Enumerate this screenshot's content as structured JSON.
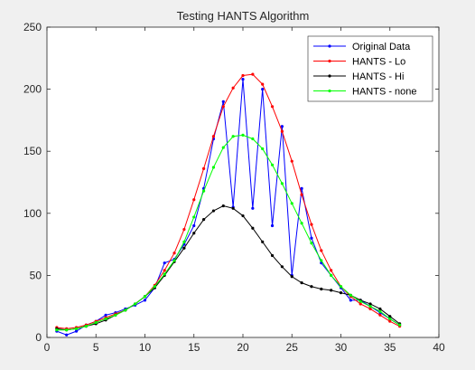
{
  "chart_data": {
    "type": "line",
    "title": "Testing HANTS Algorithm",
    "xlabel": "",
    "ylabel": "",
    "xlim": [
      0,
      40
    ],
    "ylim": [
      0,
      250
    ],
    "xticks": [
      0,
      5,
      10,
      15,
      20,
      25,
      30,
      35,
      40
    ],
    "yticks": [
      0,
      50,
      100,
      150,
      200,
      250
    ],
    "grid": false,
    "legend_position": "top-right",
    "x": [
      1,
      2,
      3,
      4,
      5,
      6,
      7,
      8,
      9,
      10,
      11,
      12,
      13,
      14,
      15,
      16,
      17,
      18,
      19,
      20,
      21,
      22,
      23,
      24,
      25,
      26,
      27,
      28,
      29,
      30,
      31,
      32,
      33,
      34,
      35,
      36
    ],
    "series": [
      {
        "name": "Original Data",
        "color": "#0000ff",
        "values": [
          5,
          2,
          5,
          10,
          13,
          18,
          20,
          23,
          26,
          30,
          40,
          60,
          63,
          75,
          90,
          120,
          160,
          190,
          105,
          208,
          104,
          200,
          90,
          170,
          50,
          120,
          80,
          60,
          50,
          40,
          30,
          30,
          25,
          20,
          15,
          10
        ]
      },
      {
        "name": "HANTS - Lo",
        "color": "#ff0000",
        "values": [
          8,
          7,
          8,
          10,
          13,
          16,
          19,
          22,
          27,
          33,
          42,
          54,
          68,
          87,
          111,
          136,
          162,
          186,
          201,
          211,
          212,
          204,
          186,
          166,
          142,
          115,
          91,
          70,
          54,
          41,
          33,
          27,
          23,
          18,
          13,
          9
        ]
      },
      {
        "name": "HANTS - Hi",
        "color": "#000000",
        "values": [
          7,
          6,
          7,
          9,
          11,
          14,
          18,
          22,
          27,
          33,
          40,
          50,
          61,
          72,
          84,
          95,
          102,
          106,
          104,
          98,
          88,
          77,
          66,
          57,
          49,
          44,
          41,
          39,
          38,
          36,
          34,
          30,
          27,
          23,
          17,
          11
        ]
      },
      {
        "name": "HANTS - none",
        "color": "#00ff00",
        "values": [
          6,
          6,
          7,
          9,
          12,
          15,
          18,
          22,
          27,
          33,
          41,
          51,
          62,
          77,
          97,
          118,
          137,
          153,
          162,
          163,
          160,
          152,
          139,
          124,
          108,
          92,
          76,
          62,
          50,
          41,
          34,
          29,
          25,
          21,
          15,
          10
        ]
      }
    ]
  }
}
